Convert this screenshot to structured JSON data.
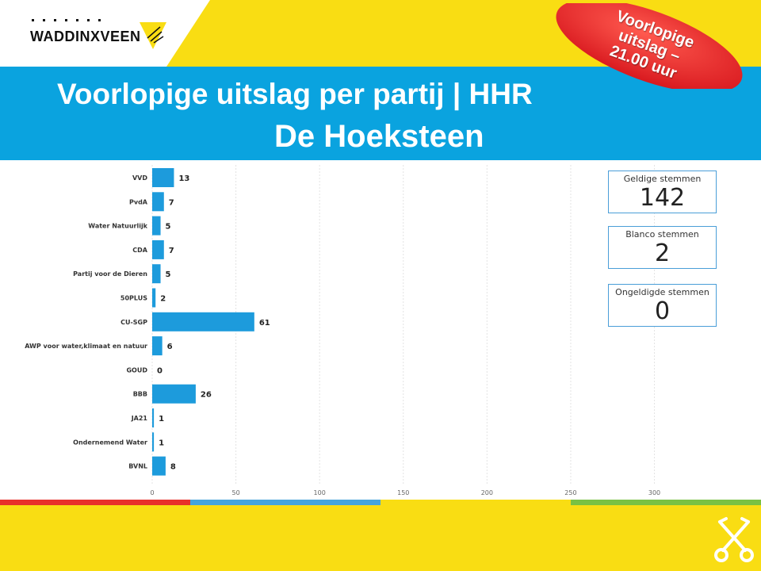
{
  "header": {
    "logo_text": "WADDINXVEEN",
    "title": "Voorlopige uitslag per partij | HHR",
    "subtitle": "De Hoeksteen"
  },
  "badge": {
    "lines": [
      "Voorlopige",
      "uitslag –",
      "21.00 uur"
    ]
  },
  "stats": [
    {
      "label": "Geldige stemmen",
      "value": "142"
    },
    {
      "label": "Blanco stemmen",
      "value": "2"
    },
    {
      "label": "Ongeldigde stemmen",
      "value": "0"
    }
  ],
  "colors": {
    "bar": "#1d9bdc",
    "blue_band": "#0aa3df",
    "yellow": "#f9dd13",
    "badge_red": "#e8232a",
    "stripe_red": "#e8312a",
    "stripe_blue": "#45a4dc",
    "stripe_green": "#7ac143"
  },
  "chart_data": {
    "type": "bar",
    "orientation": "horizontal",
    "categories": [
      "VVD",
      "PvdA",
      "Water Natuurlijk",
      "CDA",
      "Partij voor de Dieren",
      "50PLUS",
      "CU-SGP",
      "AWP voor water,klimaat en natuur",
      "GOUD",
      "BBB",
      "JA21",
      "Ondernemend Water",
      "BVNL"
    ],
    "values": [
      13,
      7,
      5,
      7,
      5,
      2,
      61,
      6,
      0,
      26,
      1,
      1,
      8
    ],
    "xticks": [
      0,
      50,
      100,
      150,
      200,
      250,
      300
    ],
    "xlim": [
      0,
      340
    ],
    "grid": true
  }
}
